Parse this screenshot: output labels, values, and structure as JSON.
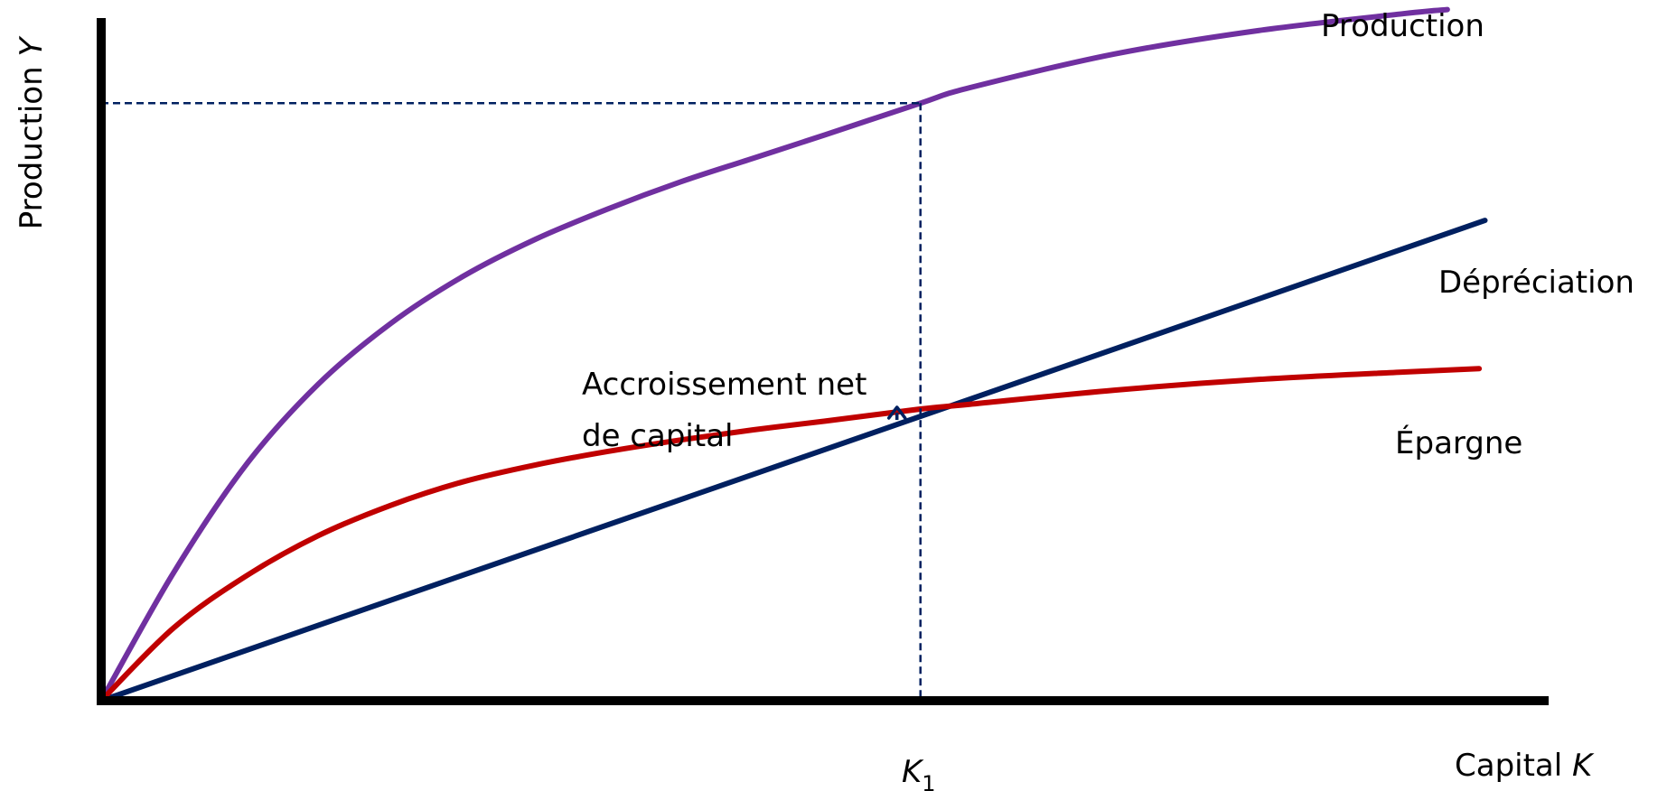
{
  "chart_data": {
    "type": "line",
    "title": "",
    "xlabel": {
      "text": "Capital ",
      "var": "K"
    },
    "ylabel": {
      "text": "Production ",
      "var": "Y"
    },
    "xlim": [
      0,
      100
    ],
    "ylim": [
      0,
      100
    ],
    "grid": false,
    "x_tick": {
      "var": "K",
      "sub": "1",
      "x": 56.6
    },
    "annotation": {
      "line1": "Accroissement net",
      "line2": "de capital"
    },
    "colors": {
      "production": "#7030a0",
      "depreciation": "#002060",
      "epargne": "#c00000",
      "axes": "#000000",
      "guide": "#002060"
    },
    "series": [
      {
        "name": "Production",
        "color": "#7030a0",
        "x": [
          0,
          5,
          10,
          15,
          20,
          25,
          30,
          35,
          40,
          45,
          50,
          56.6,
          60,
          70,
          80,
          90,
          93
        ],
        "y": [
          0,
          19,
          35,
          47,
          56,
          63,
          68.5,
          73,
          77,
          80.5,
          84,
          88.7,
          91,
          96,
          99.5,
          102,
          102.6
        ]
      },
      {
        "name": "Dépréciation",
        "color": "#002060",
        "x": [
          0,
          95.6
        ],
        "y": [
          0,
          71.3
        ]
      },
      {
        "name": "Épargne",
        "color": "#c00000",
        "x": [
          0,
          5,
          10,
          15,
          20,
          25,
          30,
          35,
          40,
          45,
          50,
          56.6,
          60,
          70,
          80,
          90,
          95.2
        ],
        "y": [
          0,
          10.8,
          18.5,
          24.5,
          29,
          32.5,
          35,
          37,
          38.7,
          40.2,
          41.5,
          43.3,
          44,
          46.1,
          47.7,
          48.8,
          49.3
        ]
      }
    ]
  }
}
